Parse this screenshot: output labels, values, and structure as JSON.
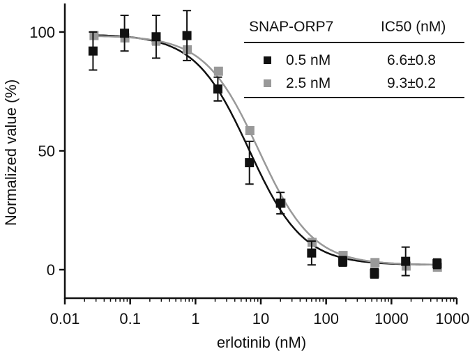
{
  "chart_data": {
    "type": "scatter",
    "xlabel": "erlotinib (nM)",
    "ylabel": "Normalized value (%)",
    "xscale": "log",
    "xlim": [
      0.01,
      10000
    ],
    "ylim": [
      -12,
      112
    ],
    "xticks": [
      0.01,
      0.1,
      1,
      10,
      100,
      1000,
      10000
    ],
    "xtick_labels": [
      "0.01",
      "0.1",
      "1",
      "10",
      "100",
      "1000",
      "10000"
    ],
    "yticks": [
      0,
      50,
      100
    ],
    "ytick_labels": [
      "0",
      "50",
      "100"
    ],
    "legend": {
      "position": "top-right",
      "header_name": "SNAP-ORP7",
      "header_value": "IC50 (nM)"
    },
    "series": [
      {
        "name": "0.5 nM",
        "ic50_label": "6.6±0.8",
        "ic50": 6.6,
        "color": "#111111",
        "x": [
          0.027,
          0.082,
          0.25,
          0.74,
          2.2,
          6.7,
          20,
          60,
          180,
          550,
          1650,
          5000
        ],
        "y": [
          92,
          99.5,
          98,
          98.5,
          76,
          45,
          28,
          7,
          3.5,
          -1.5,
          3.5,
          2.5
        ],
        "err": [
          8,
          7.5,
          9,
          10.5,
          5,
          9,
          4.5,
          5,
          2,
          2,
          6,
          2
        ]
      },
      {
        "name": "2.5 nM",
        "ic50_label": "9.3±0.2",
        "ic50": 9.3,
        "color": "#999999",
        "x": [
          0.028,
          0.083,
          0.25,
          0.75,
          2.25,
          6.8,
          20.5,
          61,
          182,
          560,
          1680,
          5050
        ],
        "y": [
          98.5,
          97.5,
          96.5,
          92.5,
          83.5,
          58.5,
          28,
          11.5,
          6,
          3,
          1.5,
          1
        ],
        "err": [
          1,
          1.5,
          2,
          1.5,
          1,
          1,
          1,
          1,
          1,
          1,
          1,
          1
        ]
      }
    ],
    "fit_curves": [
      {
        "series": "0.5 nM",
        "top": 99,
        "bottom": 2,
        "ic50": 6.6,
        "hill": 1.05,
        "color": "#111111"
      },
      {
        "series": "2.5 nM",
        "top": 98.5,
        "bottom": 2,
        "ic50": 9.3,
        "hill": 1.05,
        "color": "#999999"
      }
    ]
  }
}
